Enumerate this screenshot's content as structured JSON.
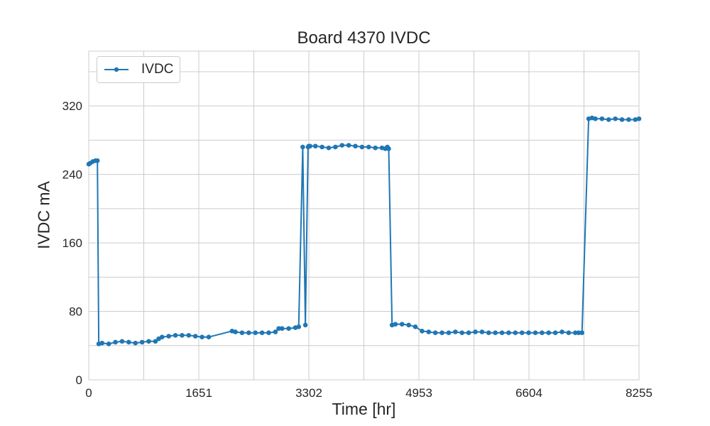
{
  "chart_data": {
    "type": "line",
    "title": "Board 4370 IVDC",
    "xlabel": "Time [hr]",
    "ylabel": "IVDC mA",
    "xlim": [
      0,
      8255
    ],
    "ylim": [
      0,
      384
    ],
    "xticks": [
      0,
      1651,
      3302,
      4953,
      6604,
      8255
    ],
    "yticks": [
      0,
      80,
      160,
      240,
      320
    ],
    "grid": true,
    "legend": "top-left",
    "series": [
      {
        "name": "IVDC",
        "color": "#1f77b4",
        "marker": "circle",
        "x": [
          0,
          20,
          60,
          100,
          130,
          150,
          200,
          300,
          400,
          500,
          600,
          700,
          800,
          900,
          1000,
          1050,
          1100,
          1200,
          1300,
          1400,
          1500,
          1600,
          1700,
          1800,
          2150,
          2200,
          2300,
          2400,
          2500,
          2600,
          2700,
          2800,
          2850,
          2900,
          3000,
          3100,
          3150,
          3210,
          3250,
          3290,
          3300,
          3320,
          3400,
          3500,
          3600,
          3700,
          3800,
          3900,
          4000,
          4100,
          4200,
          4300,
          4400,
          4450,
          4480,
          4500,
          4550,
          4600,
          4700,
          4800,
          4900,
          5000,
          5100,
          5200,
          5300,
          5400,
          5500,
          5600,
          5700,
          5800,
          5900,
          6000,
          6100,
          6200,
          6300,
          6400,
          6500,
          6600,
          6700,
          6800,
          6900,
          7000,
          7100,
          7200,
          7300,
          7350,
          7400,
          7500,
          7550,
          7600,
          7700,
          7800,
          7900,
          8000,
          8100,
          8200,
          8255
        ],
        "y": [
          252,
          253,
          255,
          256,
          256,
          42,
          43,
          42,
          44,
          45,
          44,
          43,
          44,
          45,
          45,
          48,
          50,
          51,
          52,
          52,
          52,
          51,
          50,
          50,
          57,
          56,
          55,
          55,
          55,
          55,
          55,
          56,
          60,
          60,
          60,
          61,
          62,
          272,
          64,
          272,
          273,
          273,
          273,
          272,
          271,
          272,
          274,
          274,
          273,
          272,
          272,
          271,
          271,
          270,
          272,
          270,
          64,
          65,
          65,
          64,
          62,
          57,
          56,
          55,
          55,
          55,
          56,
          55,
          55,
          56,
          56,
          55,
          55,
          55,
          55,
          55,
          55,
          55,
          55,
          55,
          55,
          55,
          56,
          55,
          55,
          55,
          55,
          305,
          306,
          305,
          305,
          304,
          305,
          304,
          304,
          304,
          305
        ]
      }
    ]
  }
}
